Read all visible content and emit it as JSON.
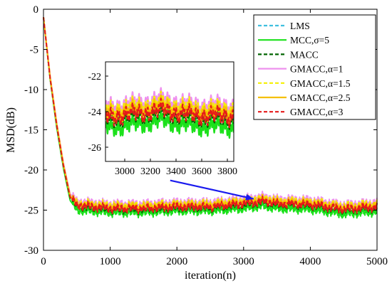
{
  "chart_data": {
    "type": "line",
    "xlabel": "iteration(n)",
    "ylabel": "MSD(dB)",
    "xlim": [
      0,
      5000
    ],
    "ylim": [
      -30,
      0
    ],
    "xticks": [
      "0",
      "1000",
      "2000",
      "3000",
      "4000",
      "5000"
    ],
    "yticks": [
      "0",
      "-5",
      "-10",
      "-15",
      "-20",
      "-25",
      "-30"
    ],
    "grid": false,
    "legend_position": "top-right",
    "series": [
      {
        "name": "LMS",
        "color": "#3fbfdf",
        "dash": "dashed",
        "x": [
          0,
          100,
          200,
          300,
          400,
          500,
          1000,
          1500,
          2000,
          2500,
          3000,
          3300,
          3500,
          4000,
          4500,
          5000
        ],
        "values": [
          -1,
          -8.5,
          -14.5,
          -19.5,
          -23.4,
          -24.4,
          -24.8,
          -24.8,
          -24.6,
          -24.6,
          -24.2,
          -23.9,
          -24.2,
          -24.3,
          -24.9,
          -24.6
        ]
      },
      {
        "name": "MCC,σ=5",
        "color": "#1be11b",
        "dash": "solid",
        "x": [
          0,
          100,
          200,
          300,
          400,
          500,
          1000,
          1500,
          2000,
          2500,
          3000,
          3300,
          3500,
          4000,
          4500,
          5000
        ],
        "values": [
          -1,
          -8.7,
          -14.8,
          -19.8,
          -23.8,
          -25.0,
          -25.3,
          -25.3,
          -25.1,
          -25.1,
          -24.8,
          -24.5,
          -24.8,
          -24.9,
          -25.5,
          -25.2
        ]
      },
      {
        "name": "MACC",
        "color": "#006400",
        "dash": "dashed",
        "x": [
          0,
          100,
          200,
          300,
          400,
          500,
          1000,
          1500,
          2000,
          2500,
          3000,
          3300,
          3500,
          4000,
          4500,
          5000
        ],
        "values": [
          -1,
          -8.6,
          -14.6,
          -19.6,
          -23.5,
          -24.5,
          -24.9,
          -24.9,
          -24.7,
          -24.7,
          -24.3,
          -24.0,
          -24.3,
          -24.4,
          -25.0,
          -24.7
        ]
      },
      {
        "name": "GMACC,α=1",
        "color": "#ee90ee",
        "dash": "solid",
        "x": [
          0,
          100,
          200,
          300,
          400,
          500,
          1000,
          1500,
          2000,
          2500,
          3000,
          3300,
          3500,
          4000,
          4500,
          5000
        ],
        "values": [
          -1,
          -8.3,
          -14.2,
          -19.2,
          -23.0,
          -23.9,
          -24.2,
          -24.2,
          -24.0,
          -24.0,
          -23.6,
          -23.3,
          -23.6,
          -23.7,
          -24.3,
          -24.0
        ]
      },
      {
        "name": "GMACC,α=1.5",
        "color": "#f5f000",
        "dash": "dashed",
        "x": [
          0,
          100,
          200,
          300,
          400,
          500,
          1000,
          1500,
          2000,
          2500,
          3000,
          3300,
          3500,
          4000,
          4500,
          5000
        ],
        "values": [
          -1,
          -8.4,
          -14.3,
          -19.3,
          -23.2,
          -24.1,
          -24.4,
          -24.4,
          -24.2,
          -24.2,
          -23.8,
          -23.5,
          -23.8,
          -23.9,
          -24.5,
          -24.2
        ]
      },
      {
        "name": "GMACC,α=2.5",
        "color": "#f5c000",
        "dash": "solid",
        "x": [
          0,
          100,
          200,
          300,
          400,
          500,
          1000,
          1500,
          2000,
          2500,
          3000,
          3300,
          3500,
          4000,
          4500,
          5000
        ],
        "values": [
          -1,
          -8.5,
          -14.4,
          -19.4,
          -23.3,
          -24.3,
          -24.6,
          -24.6,
          -24.4,
          -24.4,
          -24.0,
          -23.7,
          -24.0,
          -24.1,
          -24.7,
          -24.4
        ]
      },
      {
        "name": "GMACC,α=3",
        "color": "#e61a1a",
        "dash": "dashed",
        "x": [
          0,
          100,
          200,
          300,
          400,
          500,
          1000,
          1500,
          2000,
          2500,
          3000,
          3300,
          3500,
          4000,
          4500,
          5000
        ],
        "values": [
          -1,
          -8.6,
          -14.5,
          -19.5,
          -23.4,
          -24.4,
          -24.8,
          -24.8,
          -24.6,
          -24.6,
          -24.2,
          -23.9,
          -24.2,
          -24.3,
          -24.9,
          -24.6
        ]
      }
    ],
    "inset": {
      "xlim": [
        2850,
        3850
      ],
      "ylim": [
        -26.8,
        -21.2
      ],
      "xticks": [
        "3000",
        "3200",
        "3400",
        "3600",
        "3800"
      ],
      "yticks": [
        "-22",
        "-24",
        "-26"
      ]
    },
    "annotation": {
      "type": "arrow",
      "from": [
        1900,
        -21.3
      ],
      "to": [
        3150,
        -23.6
      ],
      "color": "#1a1aee"
    }
  }
}
